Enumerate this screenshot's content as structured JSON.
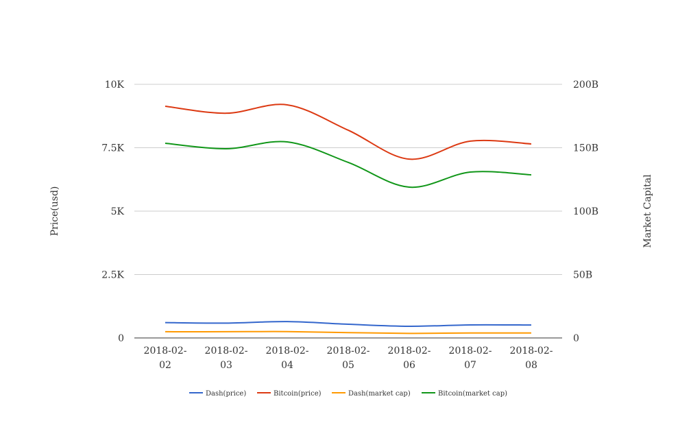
{
  "chart_data": {
    "type": "line",
    "title": "",
    "categories": [
      "2018-02-02",
      "2018-02-03",
      "2018-02-04",
      "2018-02-05",
      "2018-02-06",
      "2018-02-07",
      "2018-02-08"
    ],
    "category_lines": [
      [
        "2018-02-",
        "02"
      ],
      [
        "2018-02-",
        "03"
      ],
      [
        "2018-02-",
        "04"
      ],
      [
        "2018-02-",
        "05"
      ],
      [
        "2018-02-",
        "06"
      ],
      [
        "2018-02-",
        "07"
      ],
      [
        "2018-02-",
        "08"
      ]
    ],
    "ylabel": "Price(usd)",
    "y2label": "Market Capital",
    "ylim": [
      0,
      10000
    ],
    "y2lim": [
      0,
      200000000000
    ],
    "yticks": [
      {
        "v": 0,
        "label": "0"
      },
      {
        "v": 2500,
        "label": "2.5K"
      },
      {
        "v": 5000,
        "label": "5K"
      },
      {
        "v": 7500,
        "label": "7.5K"
      },
      {
        "v": 10000,
        "label": "10K"
      }
    ],
    "y2ticks": [
      {
        "v": 0,
        "label": "0"
      },
      {
        "v": 50000000000,
        "label": "50B"
      },
      {
        "v": 100000000000,
        "label": "100B"
      },
      {
        "v": 150000000000,
        "label": "150B"
      },
      {
        "v": 200000000000,
        "label": "200B"
      }
    ],
    "grid": true,
    "legend_position": "bottom",
    "series": [
      {
        "name": "Dash(price)",
        "axis": "left",
        "color": "#3366cc",
        "values": [
          605,
          585,
          645,
          540,
          460,
          515,
          510
        ]
      },
      {
        "name": "Bitcoin(price)",
        "axis": "left",
        "color": "#dc3912",
        "values": [
          9135,
          8860,
          9190,
          8190,
          7050,
          7760,
          7650
        ]
      },
      {
        "name": "Dash(market cap)",
        "axis": "right",
        "color": "#ff9900",
        "values": [
          4900000000,
          4900000000,
          5000000000,
          4200000000,
          3600000000,
          3900000000,
          3900000000
        ]
      },
      {
        "name": "Bitcoin(market cap)",
        "axis": "right",
        "color": "#109618",
        "values": [
          153500000000,
          149200000000,
          154600000000,
          138400000000,
          118900000000,
          130800000000,
          128600000000
        ]
      }
    ]
  }
}
